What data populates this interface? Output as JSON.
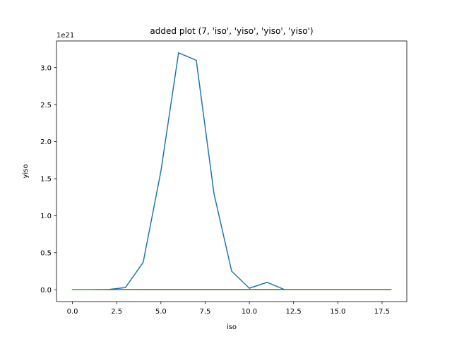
{
  "chart_data": {
    "type": "line",
    "title": "added plot (7, 'iso', 'yiso', 'yiso', 'yiso')",
    "xlabel": "iso",
    "ylabel": "yiso",
    "y_offset_text": "1e21",
    "xlim": [
      -0.9,
      18.9
    ],
    "ylim": [
      -0.16,
      3.36
    ],
    "grid": false,
    "x_ticks": [
      0,
      2.5,
      5,
      7.5,
      10,
      12.5,
      15,
      17.5
    ],
    "x_tick_labels": [
      "0.0",
      "2.5",
      "5.0",
      "7.5",
      "10.0",
      "12.5",
      "15.0",
      "17.5"
    ],
    "y_ticks": [
      0,
      0.5,
      1,
      1.5,
      2,
      2.5,
      3
    ],
    "y_tick_labels": [
      "0.0",
      "0.5",
      "1.0",
      "1.5",
      "2.0",
      "2.5",
      "3.0"
    ],
    "x": [
      0,
      1,
      2,
      3,
      4,
      5,
      6,
      7,
      8,
      9,
      10,
      11,
      12,
      13,
      14,
      15,
      16,
      17,
      18
    ],
    "series": [
      {
        "color": "#1f77b4",
        "values": [
          0,
          0,
          0.002,
          0.03,
          0.37,
          1.6,
          3.2,
          3.1,
          1.3,
          0.25,
          0.02,
          0.1,
          0,
          0,
          0,
          0,
          0,
          0,
          0
        ]
      },
      {
        "color": "#ff7f0e",
        "values": [
          0,
          0,
          0,
          0,
          0,
          0,
          0,
          0,
          0,
          0,
          0,
          0,
          0,
          0,
          0,
          0,
          0,
          0,
          0
        ]
      },
      {
        "color": "#2ca02c",
        "values": [
          0,
          0,
          0.002,
          0.002,
          0.003,
          0.003,
          0.003,
          0.003,
          0.003,
          0.003,
          0.003,
          0.003,
          0.002,
          0.002,
          0.002,
          0.002,
          0.002,
          0.002,
          0.002
        ]
      }
    ]
  }
}
